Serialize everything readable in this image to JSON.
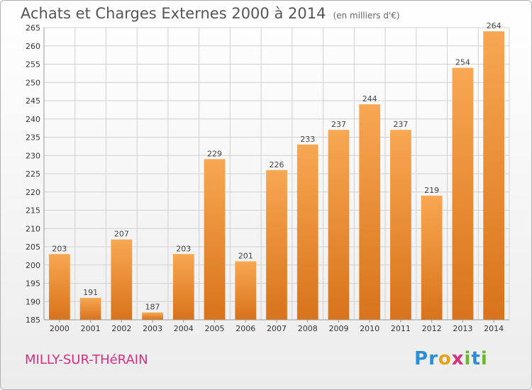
{
  "header": {
    "title": "Achats et Charges Externes 2000 à 2014",
    "subtitle": "(en milliers d'€)"
  },
  "footer": {
    "commune": "MILLY-SUR-THéRAIN",
    "logo_letters": [
      "P",
      "r",
      "o",
      "x",
      "i",
      "t",
      "i"
    ],
    "logo_colors": [
      "#2a8fd6",
      "#2a8fd6",
      "#e8a21a",
      "#d4307e",
      "#6bb52f",
      "#2a8fd6",
      "#6bb52f"
    ]
  },
  "colors": {
    "bar_top": "#f8a752",
    "bar_bottom": "#d8731a",
    "grid": "#d0d0d0",
    "axis": "#999999"
  },
  "chart_data": {
    "type": "bar",
    "categories": [
      "2000",
      "2001",
      "2002",
      "2003",
      "2004",
      "2005",
      "2006",
      "2007",
      "2008",
      "2009",
      "2010",
      "2011",
      "2012",
      "2013",
      "2014"
    ],
    "values": [
      203,
      191,
      207,
      187,
      203,
      229,
      201,
      226,
      233,
      237,
      244,
      237,
      219,
      254,
      264
    ],
    "ylim": [
      185,
      265
    ],
    "yticks": [
      185,
      190,
      195,
      200,
      205,
      210,
      215,
      220,
      225,
      230,
      235,
      240,
      245,
      250,
      255,
      260,
      265
    ],
    "grid": true
  }
}
